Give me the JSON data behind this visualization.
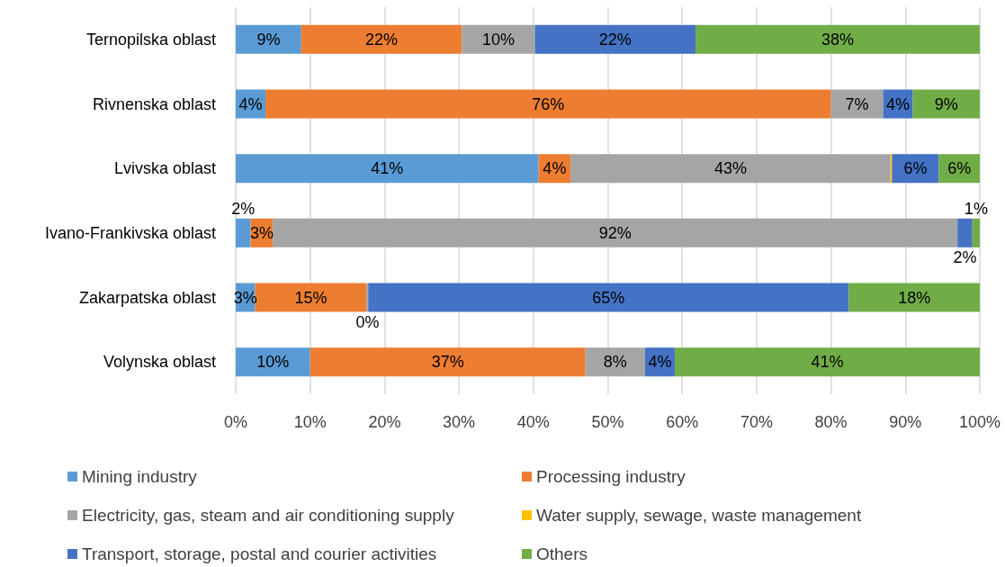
{
  "chart_data": {
    "type": "bar",
    "orientation": "horizontal",
    "stacked": true,
    "categories": [
      "Ternopilska oblast",
      "Rivnenska oblast",
      "Lvivska oblast",
      "Ivano-Frankivska oblast",
      "Zakarpatska oblast",
      "Volynska oblast"
    ],
    "series": [
      {
        "name": "Mining industry",
        "color": "#5b9bd5",
        "values": [
          8.8,
          4,
          40.7,
          2,
          2.6,
          10
        ],
        "value_labels": [
          "9%",
          "4%",
          "41%",
          "2%",
          "3%",
          "10%"
        ]
      },
      {
        "name": "Processing industry",
        "color": "#ed7d31",
        "values": [
          21.6,
          76,
          4.3,
          3,
          15,
          37
        ],
        "value_labels": [
          "22%",
          "76%",
          "4%",
          "3%",
          "15%",
          "37%"
        ]
      },
      {
        "name": "Electricity, gas, steam and air conditioning supply",
        "color": "#a5a5a5",
        "values": [
          9.8,
          7,
          43,
          92,
          0.2,
          8
        ],
        "value_labels": [
          "10%",
          "7%",
          "43%",
          "92%",
          "0%",
          "8%"
        ]
      },
      {
        "name": "Water supply, sewage, waste management",
        "color": "#ffc000",
        "values": [
          null,
          null,
          0.2,
          null,
          null,
          null
        ]
      },
      {
        "name": "Transport, storage, postal and courier activities",
        "color": "#4472c4",
        "values": [
          21.6,
          4,
          6.3,
          2,
          64.6,
          4
        ],
        "value_labels": [
          "22%",
          "4%",
          "6%",
          "2%",
          "65%",
          "4%"
        ]
      },
      {
        "name": "Others",
        "color": "#70ad47",
        "values": [
          38.2,
          9,
          5.5,
          1,
          17.6,
          41
        ],
        "value_labels": [
          "38%",
          "9%",
          "6%",
          "1%",
          "18%",
          "41%"
        ]
      }
    ],
    "xlim": [
      0,
      100
    ],
    "xticks": [
      {
        "value": 0,
        "label": "0%"
      },
      {
        "value": 10,
        "label": "10%"
      },
      {
        "value": 20,
        "label": "20%"
      },
      {
        "value": 30,
        "label": "30%"
      },
      {
        "value": 40,
        "label": "40%"
      },
      {
        "value": 50,
        "label": "50%"
      },
      {
        "value": 60,
        "label": "60%"
      },
      {
        "value": 70,
        "label": "70%"
      },
      {
        "value": 80,
        "label": "80%"
      },
      {
        "value": 90,
        "label": "90%"
      },
      {
        "value": 100,
        "label": "100%"
      }
    ],
    "grid": "x",
    "legend": "bottom"
  }
}
